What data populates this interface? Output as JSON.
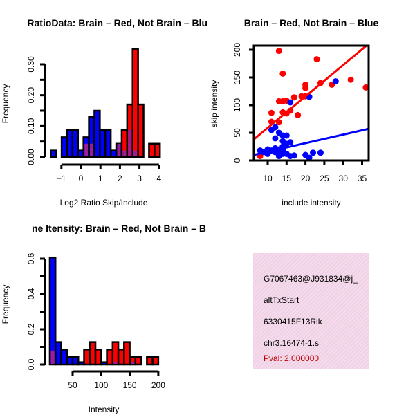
{
  "chart_data": [
    {
      "type": "bar",
      "title": "RatioData: Brain – Red, Not Brain – Blu",
      "xlabel": "Log2 Ratio Skip/Include",
      "ylabel": "Frequency",
      "xlim": [
        -1.55,
        4.05
      ],
      "ylim": [
        0,
        0.35
      ],
      "bin_start": -1.55,
      "bin_width": 0.28,
      "xticks": [
        -1,
        0,
        1,
        2,
        3,
        4
      ],
      "xtick_labels": [
        "−1",
        "0",
        "1",
        "2",
        "3",
        "4"
      ],
      "yticks": [
        0,
        0.05,
        0.1,
        0.15,
        0.2,
        0.25,
        0.3
      ],
      "ytick_labels": [
        "0.00",
        "",
        "0.10",
        "",
        "0.20",
        "",
        "0.30"
      ],
      "series": [
        {
          "name": "Not Brain",
          "color": "#0000ff",
          "values": [
            0.021,
            0,
            0.064,
            0.088,
            0.088,
            0.021,
            0.064,
            0.13,
            0.15,
            0.088,
            0.088,
            0.021,
            0.043,
            0.021,
            0.088,
            0.021,
            0,
            0,
            0,
            0
          ]
        },
        {
          "name": "Brain",
          "color": "#ff0000",
          "values": [
            0,
            0,
            0,
            0,
            0,
            0,
            0.043,
            0.043,
            0,
            0,
            0,
            0,
            0.043,
            0.088,
            0.17,
            0.35,
            0.17,
            0,
            0.043,
            0.043
          ]
        }
      ],
      "overlap_color": "#a020a0"
    },
    {
      "type": "scatter",
      "title": "Brain – Red, Not Brain – Blue",
      "xlabel": "include intensity",
      "ylabel": "skip intensity",
      "xlim": [
        6.3,
        36.6
      ],
      "ylim": [
        0,
        208
      ],
      "xticks": [
        10,
        15,
        20,
        25,
        30,
        35
      ],
      "yticks": [
        0,
        50,
        100,
        150,
        200
      ],
      "series": [
        {
          "name": "Brain",
          "color": "#ff0000",
          "points": [
            [
              13,
              198
            ],
            [
              14,
              157
            ],
            [
              23,
              183
            ],
            [
              20,
              137
            ],
            [
              20,
              131
            ],
            [
              24,
              140
            ],
            [
              27,
              137
            ],
            [
              32,
              146
            ],
            [
              36,
              132
            ],
            [
              19,
              116
            ],
            [
              20,
              116
            ],
            [
              17,
              114
            ],
            [
              15,
              108
            ],
            [
              13,
              107
            ],
            [
              14,
              107
            ],
            [
              11,
              86
            ],
            [
              14,
              87
            ],
            [
              15,
              85
            ],
            [
              16,
              90
            ],
            [
              18,
              82
            ],
            [
              11,
              70
            ],
            [
              13,
              69
            ],
            [
              8,
              8
            ]
          ],
          "fit": [
            [
              6.3,
              38
            ],
            [
              36.6,
              210
            ]
          ]
        },
        {
          "name": "Not Brain",
          "color": "#0000ff",
          "points": [
            [
              16,
              105
            ],
            [
              21,
              115
            ],
            [
              28,
              143
            ],
            [
              9,
              15
            ],
            [
              10,
              20
            ],
            [
              11,
              18
            ],
            [
              12,
              15
            ],
            [
              12,
              22
            ],
            [
              13,
              20
            ],
            [
              14,
              18
            ],
            [
              15,
              12
            ],
            [
              16,
              8
            ],
            [
              13,
              10
            ],
            [
              14,
              25
            ],
            [
              15,
              30
            ],
            [
              14,
              35
            ],
            [
              16,
              33
            ],
            [
              12,
              40
            ],
            [
              11,
              55
            ],
            [
              12,
              60
            ],
            [
              13,
              50
            ],
            [
              14,
              45
            ],
            [
              15,
              45
            ],
            [
              20,
              10
            ],
            [
              21,
              5
            ],
            [
              22,
              14
            ],
            [
              24,
              14
            ],
            [
              13,
              8
            ],
            [
              14,
              12
            ],
            [
              17,
              9
            ],
            [
              10,
              12
            ],
            [
              8,
              18
            ]
          ],
          "fit": [
            [
              6.3,
              10
            ],
            [
              36.6,
              57
            ]
          ]
        }
      ]
    },
    {
      "type": "bar",
      "title": "ne Itensity: Brain – Red, Not Brain – B",
      "xlabel": "Intensity",
      "ylabel": "Frequency",
      "xlim": [
        10,
        200
      ],
      "ylim": [
        0,
        0.6
      ],
      "bin_start": 10,
      "bin_width": 10,
      "xticks": [
        50,
        100,
        150,
        200
      ],
      "xtick_labels": [
        "50",
        "100",
        "150",
        "200"
      ],
      "yticks": [
        0,
        0.1,
        0.2,
        0.3,
        0.4,
        0.5,
        0.6
      ],
      "ytick_labels": [
        "0.0",
        "",
        "0.2",
        "",
        "0.4",
        "",
        "0.6"
      ],
      "series": [
        {
          "name": "Not Brain",
          "color": "#0000ff",
          "values": [
            0.607,
            0.127,
            0.085,
            0.043,
            0.043,
            0.013,
            0,
            0,
            0,
            0.013,
            0,
            0.013,
            0,
            0,
            0.013,
            0,
            0,
            0,
            0
          ]
        },
        {
          "name": "Brain",
          "color": "#ff0000",
          "values": [
            0.079,
            0,
            0,
            0,
            0,
            0,
            0.085,
            0.127,
            0.085,
            0,
            0.085,
            0.127,
            0.085,
            0.127,
            0.043,
            0.043,
            0,
            0.043,
            0.043
          ]
        }
      ],
      "overlap_color": "#a020a0"
    }
  ],
  "info_box": {
    "lines": [
      "G7067463@J931834@j_",
      "altTxStart",
      "6330415F13Rik",
      "chr3.16474-1.s"
    ],
    "pval": "Pval: 2.000000",
    "pval_color": "#c00000",
    "background": "#f8d8f0"
  }
}
